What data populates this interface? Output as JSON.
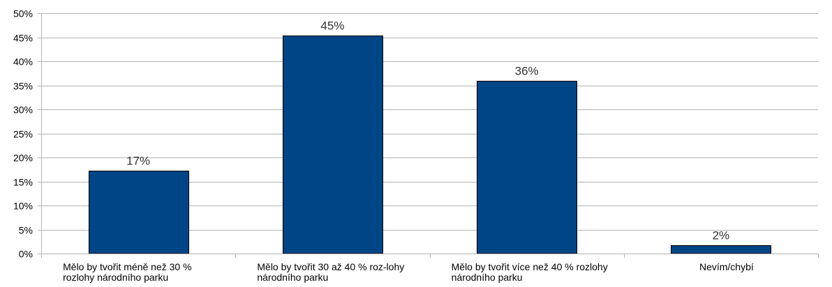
{
  "chart_data": {
    "type": "bar",
    "title": "",
    "xlabel": "",
    "ylabel": "",
    "categories": [
      "Mělo by tvořit méně než 30 % rozlohy národního parku",
      "Mělo by tvořit 30 až 40 % roz-lohy národního parku",
      "Mělo by tvořit více než 40 % rozlohy národního parku",
      "Nevím/chybí"
    ],
    "values": [
      17.2,
      45.3,
      36.0,
      1.7
    ],
    "data_labels": [
      "17%",
      "45%",
      "36%",
      "2%"
    ],
    "ylim": [
      0,
      50
    ],
    "yticks": [
      0,
      5,
      10,
      15,
      20,
      25,
      30,
      35,
      40,
      45,
      50
    ],
    "ytick_labels": [
      "0%",
      "5%",
      "10%",
      "15%",
      "20%",
      "25%",
      "30%",
      "35%",
      "40%",
      "45%",
      "50%"
    ],
    "grid": true,
    "legend": "none",
    "bar_color": "#004586",
    "bar_edge_color": "#000000",
    "grid_color": "#b3b3b3"
  }
}
